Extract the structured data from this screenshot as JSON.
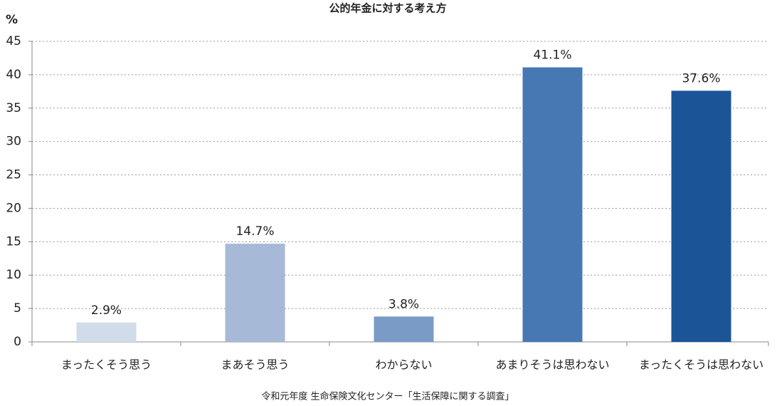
{
  "chart_data": {
    "type": "bar",
    "title": "公的年金に対する考え方",
    "ylabel": "%",
    "source": "令和元年度 生命保険文化センター「生活保障に関する調査」",
    "categories": [
      "まったくそう思う",
      "まあそう思う",
      "わからない",
      "あまりそうは思わない",
      "まったくそうは思わない"
    ],
    "values": [
      2.9,
      14.7,
      3.8,
      41.1,
      37.6
    ],
    "value_labels": [
      "2.9%",
      "14.7%",
      "3.8%",
      "41.1%",
      "37.6%"
    ],
    "colors": [
      "#d0dcea",
      "#a6b9d6",
      "#7a9bc6",
      "#4878b4",
      "#1b5598"
    ],
    "ylim": [
      0,
      45
    ],
    "yticks": [
      0,
      5,
      10,
      15,
      20,
      25,
      30,
      35,
      40,
      45
    ],
    "grid": true
  }
}
